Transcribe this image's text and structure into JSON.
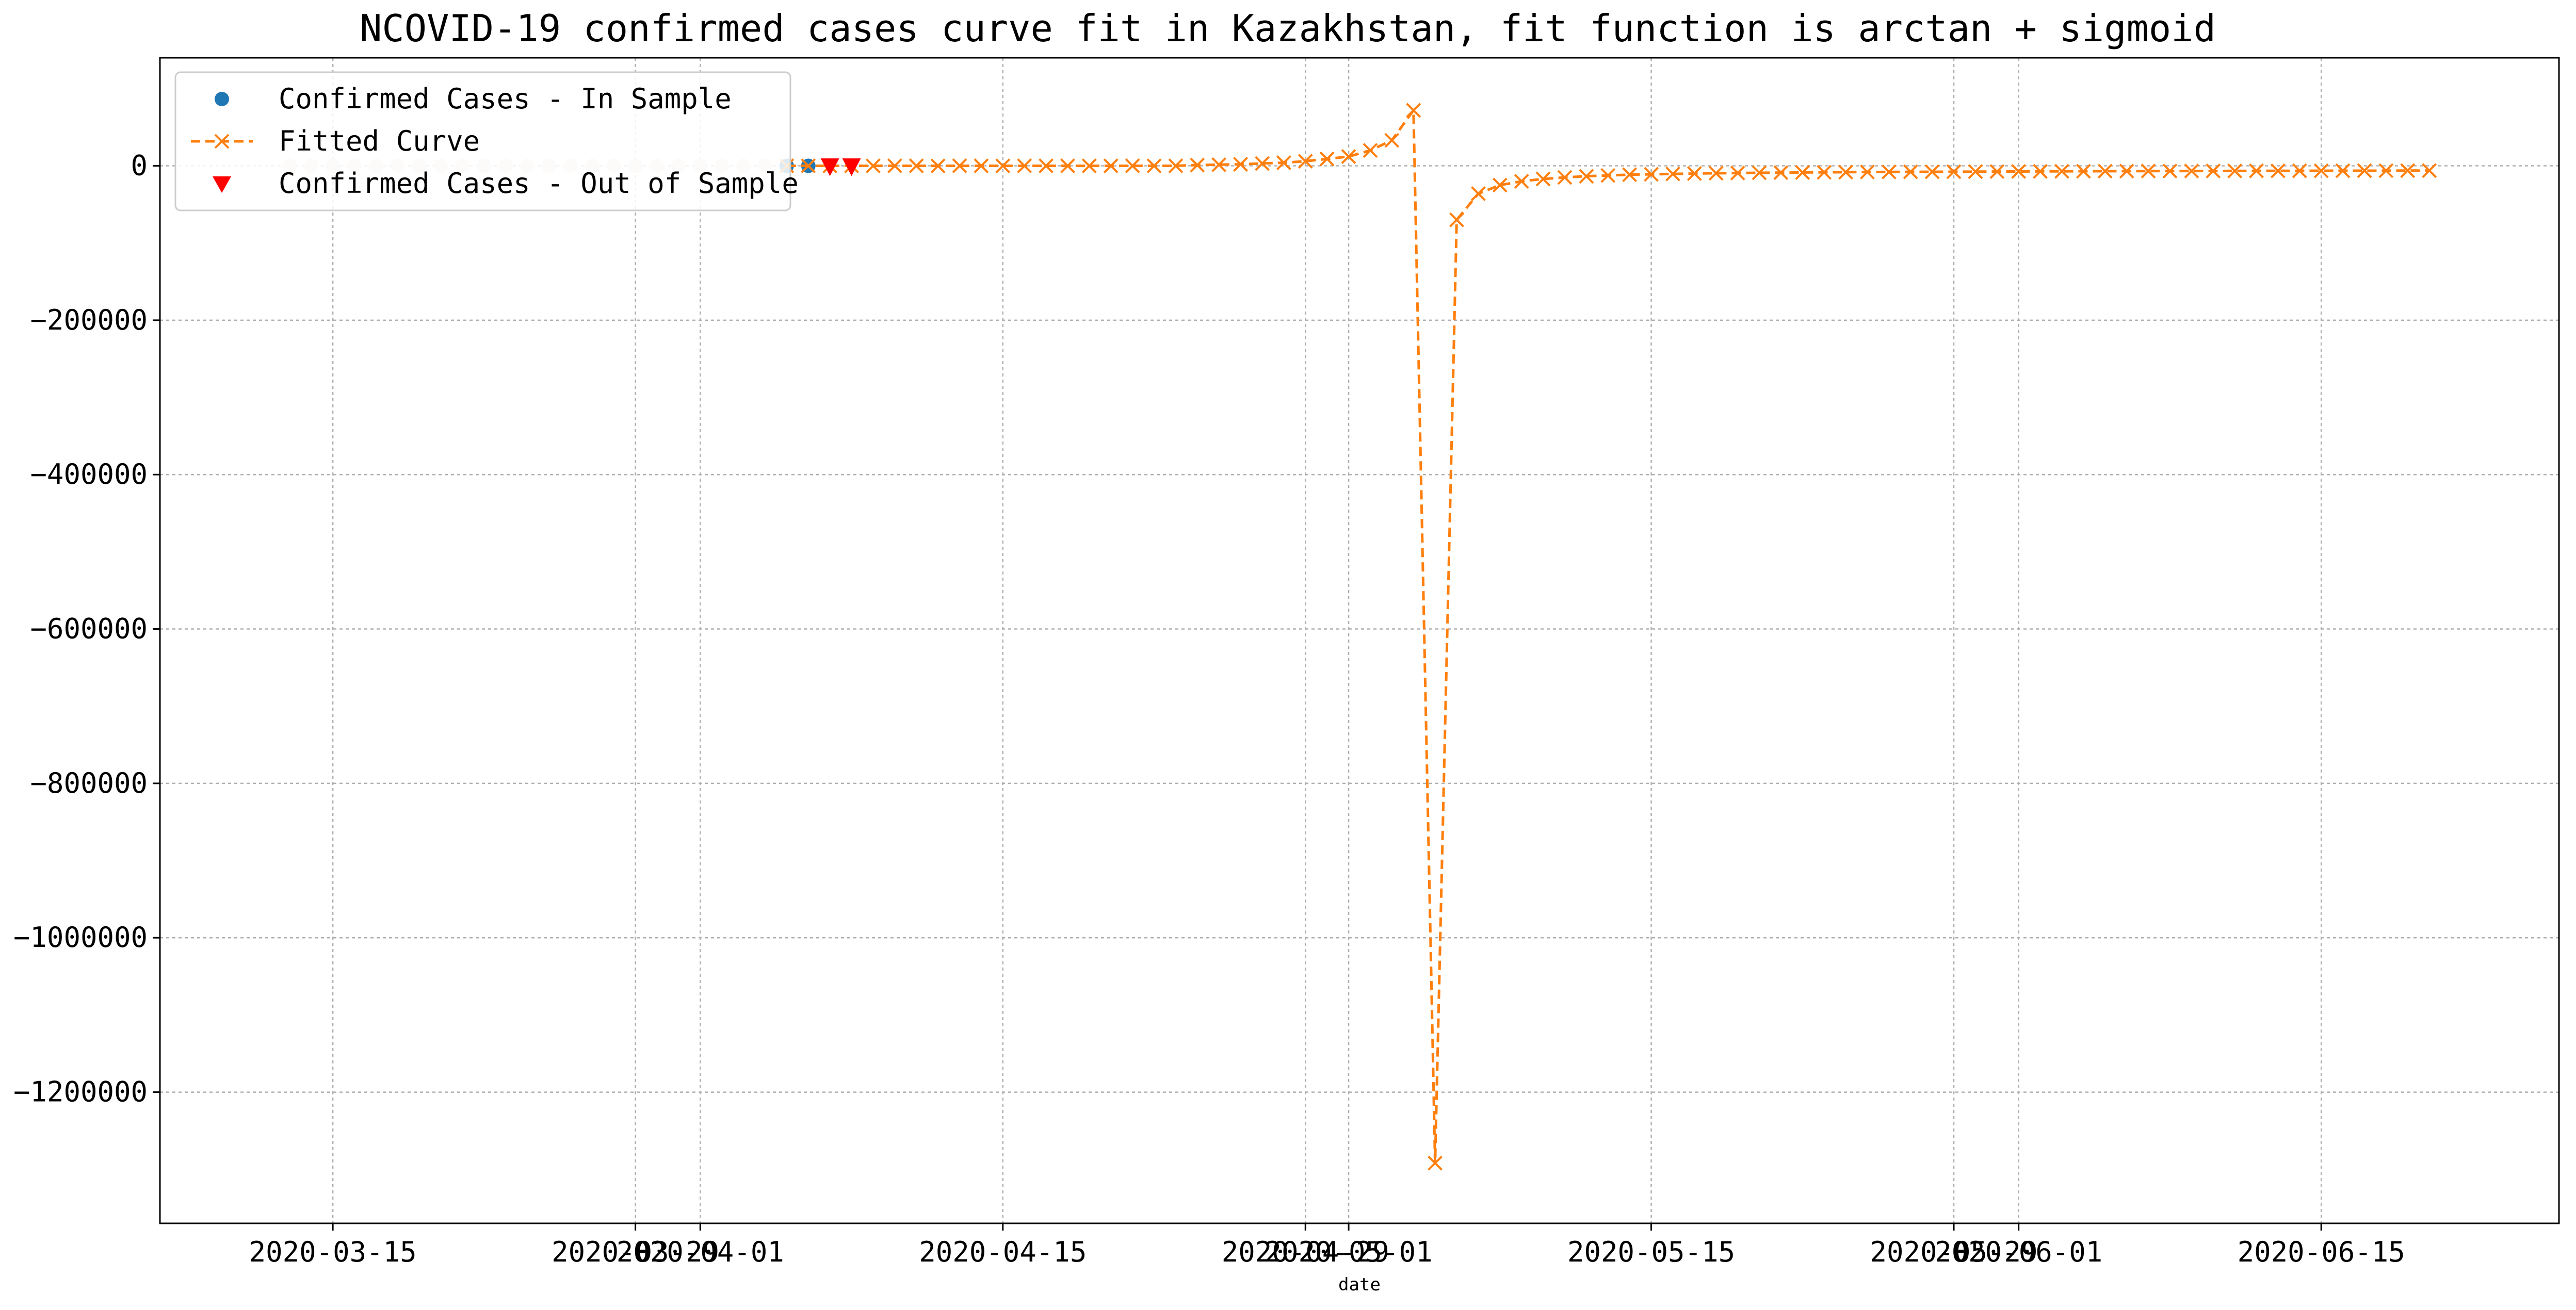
{
  "chart_data": {
    "type": "line",
    "title": "NCOVID-19 confirmed cases curve fit in Kazakhstan, fit function is arctan + sigmoid",
    "xlabel": "date",
    "ylabel": "",
    "x_axis_type": "date",
    "xlim": [
      "2020-03-07",
      "2020-06-26"
    ],
    "ylim": [
      -1370000,
      140000
    ],
    "grid": true,
    "legend_position": "top-left",
    "x_ticks": [
      "2020-03-15",
      "2020-03-29",
      "2020-04-01",
      "2020-04-15",
      "2020-04-29",
      "2020-05-01",
      "2020-05-15",
      "2020-05-29",
      "2020-06-01",
      "2020-06-15"
    ],
    "y_ticks": [
      0,
      -200000,
      -400000,
      -600000,
      -800000,
      -1000000,
      -1200000
    ],
    "y_tick_labels": [
      "0",
      "−200000",
      "−400000",
      "−600000",
      "−800000",
      "−1000000",
      "−1200000"
    ],
    "colors": {
      "in_sample": "#1f77b4",
      "fitted": "#ff7f0e",
      "out_sample": "#ff0000",
      "grid": "#b0b0b0",
      "faded_points": "#e8e3dc"
    },
    "series": [
      {
        "name": "Confirmed Cases - In Sample",
        "marker": "circle",
        "points": [
          {
            "x": "2020-03-13",
            "y": 0
          },
          {
            "x": "2020-03-14",
            "y": 0
          },
          {
            "x": "2020-03-15",
            "y": 0
          },
          {
            "x": "2020-03-16",
            "y": 0
          },
          {
            "x": "2020-03-17",
            "y": 0
          },
          {
            "x": "2020-03-18",
            "y": 0
          },
          {
            "x": "2020-03-19",
            "y": 0
          },
          {
            "x": "2020-03-20",
            "y": 0
          },
          {
            "x": "2020-03-21",
            "y": 0
          },
          {
            "x": "2020-03-22",
            "y": 0
          },
          {
            "x": "2020-03-23",
            "y": 0
          },
          {
            "x": "2020-03-24",
            "y": 0
          },
          {
            "x": "2020-03-25",
            "y": 0
          },
          {
            "x": "2020-03-26",
            "y": 0
          },
          {
            "x": "2020-03-27",
            "y": 0
          },
          {
            "x": "2020-03-28",
            "y": 0
          },
          {
            "x": "2020-03-29",
            "y": 0
          },
          {
            "x": "2020-03-30",
            "y": 0
          },
          {
            "x": "2020-03-31",
            "y": 0
          },
          {
            "x": "2020-04-01",
            "y": 0
          },
          {
            "x": "2020-04-02",
            "y": 0
          },
          {
            "x": "2020-04-03",
            "y": 0
          },
          {
            "x": "2020-04-04",
            "y": 0
          },
          {
            "x": "2020-04-05",
            "y": 0
          },
          {
            "x": "2020-04-06",
            "y": 0
          }
        ]
      },
      {
        "name": "Fitted Curve",
        "marker": "x",
        "line_style": "dashed",
        "points": [
          {
            "x": "2020-04-05",
            "y": 0
          },
          {
            "x": "2020-04-06",
            "y": 0
          },
          {
            "x": "2020-04-07",
            "y": 0
          },
          {
            "x": "2020-04-08",
            "y": 0
          },
          {
            "x": "2020-04-09",
            "y": 0
          },
          {
            "x": "2020-04-10",
            "y": 0
          },
          {
            "x": "2020-04-11",
            "y": 0
          },
          {
            "x": "2020-04-12",
            "y": 0
          },
          {
            "x": "2020-04-13",
            "y": 0
          },
          {
            "x": "2020-04-14",
            "y": 0
          },
          {
            "x": "2020-04-15",
            "y": 0
          },
          {
            "x": "2020-04-16",
            "y": 0
          },
          {
            "x": "2020-04-17",
            "y": 0
          },
          {
            "x": "2020-04-18",
            "y": 0
          },
          {
            "x": "2020-04-19",
            "y": 0
          },
          {
            "x": "2020-04-20",
            "y": 0
          },
          {
            "x": "2020-04-21",
            "y": 0
          },
          {
            "x": "2020-04-22",
            "y": 0
          },
          {
            "x": "2020-04-23",
            "y": 0
          },
          {
            "x": "2020-04-24",
            "y": 1000
          },
          {
            "x": "2020-04-25",
            "y": 1500
          },
          {
            "x": "2020-04-26",
            "y": 2000
          },
          {
            "x": "2020-04-27",
            "y": 3000
          },
          {
            "x": "2020-04-28",
            "y": 4000
          },
          {
            "x": "2020-04-29",
            "y": 6000
          },
          {
            "x": "2020-04-30",
            "y": 9000
          },
          {
            "x": "2020-05-01",
            "y": 12000
          },
          {
            "x": "2020-05-02",
            "y": 20000
          },
          {
            "x": "2020-05-03",
            "y": 33000
          },
          {
            "x": "2020-05-04",
            "y": 72000
          },
          {
            "x": "2020-05-05",
            "y": -1292000
          },
          {
            "x": "2020-05-06",
            "y": -70000
          },
          {
            "x": "2020-05-07",
            "y": -36000
          },
          {
            "x": "2020-05-08",
            "y": -25000
          },
          {
            "x": "2020-05-09",
            "y": -20000
          },
          {
            "x": "2020-05-10",
            "y": -17000
          },
          {
            "x": "2020-05-11",
            "y": -15000
          },
          {
            "x": "2020-05-12",
            "y": -13500
          },
          {
            "x": "2020-05-13",
            "y": -12500
          },
          {
            "x": "2020-05-14",
            "y": -11500
          },
          {
            "x": "2020-05-15",
            "y": -11000
          },
          {
            "x": "2020-05-16",
            "y": -10500
          },
          {
            "x": "2020-05-17",
            "y": -10000
          },
          {
            "x": "2020-05-18",
            "y": -9600
          },
          {
            "x": "2020-05-19",
            "y": -9300
          },
          {
            "x": "2020-05-20",
            "y": -9000
          },
          {
            "x": "2020-05-21",
            "y": -8800
          },
          {
            "x": "2020-05-22",
            "y": -8600
          },
          {
            "x": "2020-05-23",
            "y": -8400
          },
          {
            "x": "2020-05-24",
            "y": -8200
          },
          {
            "x": "2020-05-25",
            "y": -8000
          },
          {
            "x": "2020-05-26",
            "y": -7900
          },
          {
            "x": "2020-05-27",
            "y": -7800
          },
          {
            "x": "2020-05-28",
            "y": -7700
          },
          {
            "x": "2020-05-29",
            "y": -7600
          },
          {
            "x": "2020-05-30",
            "y": -7500
          },
          {
            "x": "2020-05-31",
            "y": -7400
          },
          {
            "x": "2020-06-01",
            "y": -7300
          },
          {
            "x": "2020-06-02",
            "y": -7200
          },
          {
            "x": "2020-06-03",
            "y": -7100
          },
          {
            "x": "2020-06-04",
            "y": -7000
          },
          {
            "x": "2020-06-05",
            "y": -6900
          },
          {
            "x": "2020-06-06",
            "y": -6850
          },
          {
            "x": "2020-06-07",
            "y": -6800
          },
          {
            "x": "2020-06-08",
            "y": -6750
          },
          {
            "x": "2020-06-09",
            "y": -6700
          },
          {
            "x": "2020-06-10",
            "y": -6650
          },
          {
            "x": "2020-06-11",
            "y": -6600
          },
          {
            "x": "2020-06-12",
            "y": -6550
          },
          {
            "x": "2020-06-13",
            "y": -6500
          },
          {
            "x": "2020-06-14",
            "y": -6450
          },
          {
            "x": "2020-06-15",
            "y": -6400
          },
          {
            "x": "2020-06-16",
            "y": -6350
          },
          {
            "x": "2020-06-17",
            "y": -6300
          },
          {
            "x": "2020-06-18",
            "y": -6250
          },
          {
            "x": "2020-06-19",
            "y": -6200
          },
          {
            "x": "2020-06-20",
            "y": -6150
          }
        ]
      },
      {
        "name": "Confirmed Cases - Out of Sample",
        "marker": "triangle-down",
        "points": [
          {
            "x": "2020-04-07",
            "y": 0
          },
          {
            "x": "2020-04-08",
            "y": 0
          }
        ]
      }
    ]
  }
}
